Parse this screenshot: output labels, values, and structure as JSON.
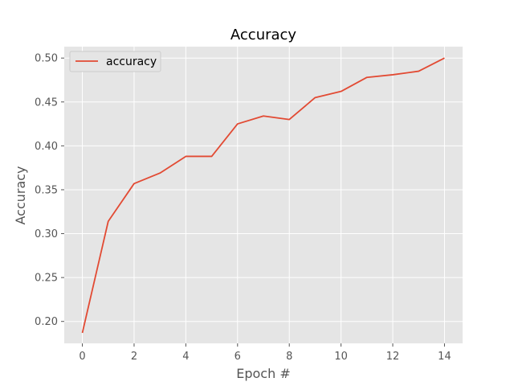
{
  "chart_data": {
    "type": "line",
    "title": "Accuracy",
    "xlabel": "Epoch #",
    "ylabel": "Accuracy",
    "xlim": [
      -0.7,
      14.7
    ],
    "ylim": [
      0.175,
      0.513
    ],
    "x_ticks": [
      0,
      2,
      4,
      6,
      8,
      10,
      12,
      14
    ],
    "y_ticks": [
      0.2,
      0.25,
      0.3,
      0.35,
      0.4,
      0.45,
      0.5
    ],
    "y_tick_labels": [
      "0.20",
      "0.25",
      "0.30",
      "0.35",
      "0.40",
      "0.45",
      "0.50"
    ],
    "grid": true,
    "legend_position": "top-left",
    "x": [
      0,
      1,
      2,
      3,
      4,
      5,
      6,
      7,
      8,
      9,
      10,
      11,
      12,
      13,
      14
    ],
    "series": [
      {
        "name": "accuracy",
        "color": "#E24A33",
        "values": [
          0.187,
          0.314,
          0.357,
          0.369,
          0.388,
          0.388,
          0.425,
          0.434,
          0.43,
          0.455,
          0.462,
          0.478,
          0.481,
          0.485,
          0.5
        ]
      }
    ]
  }
}
